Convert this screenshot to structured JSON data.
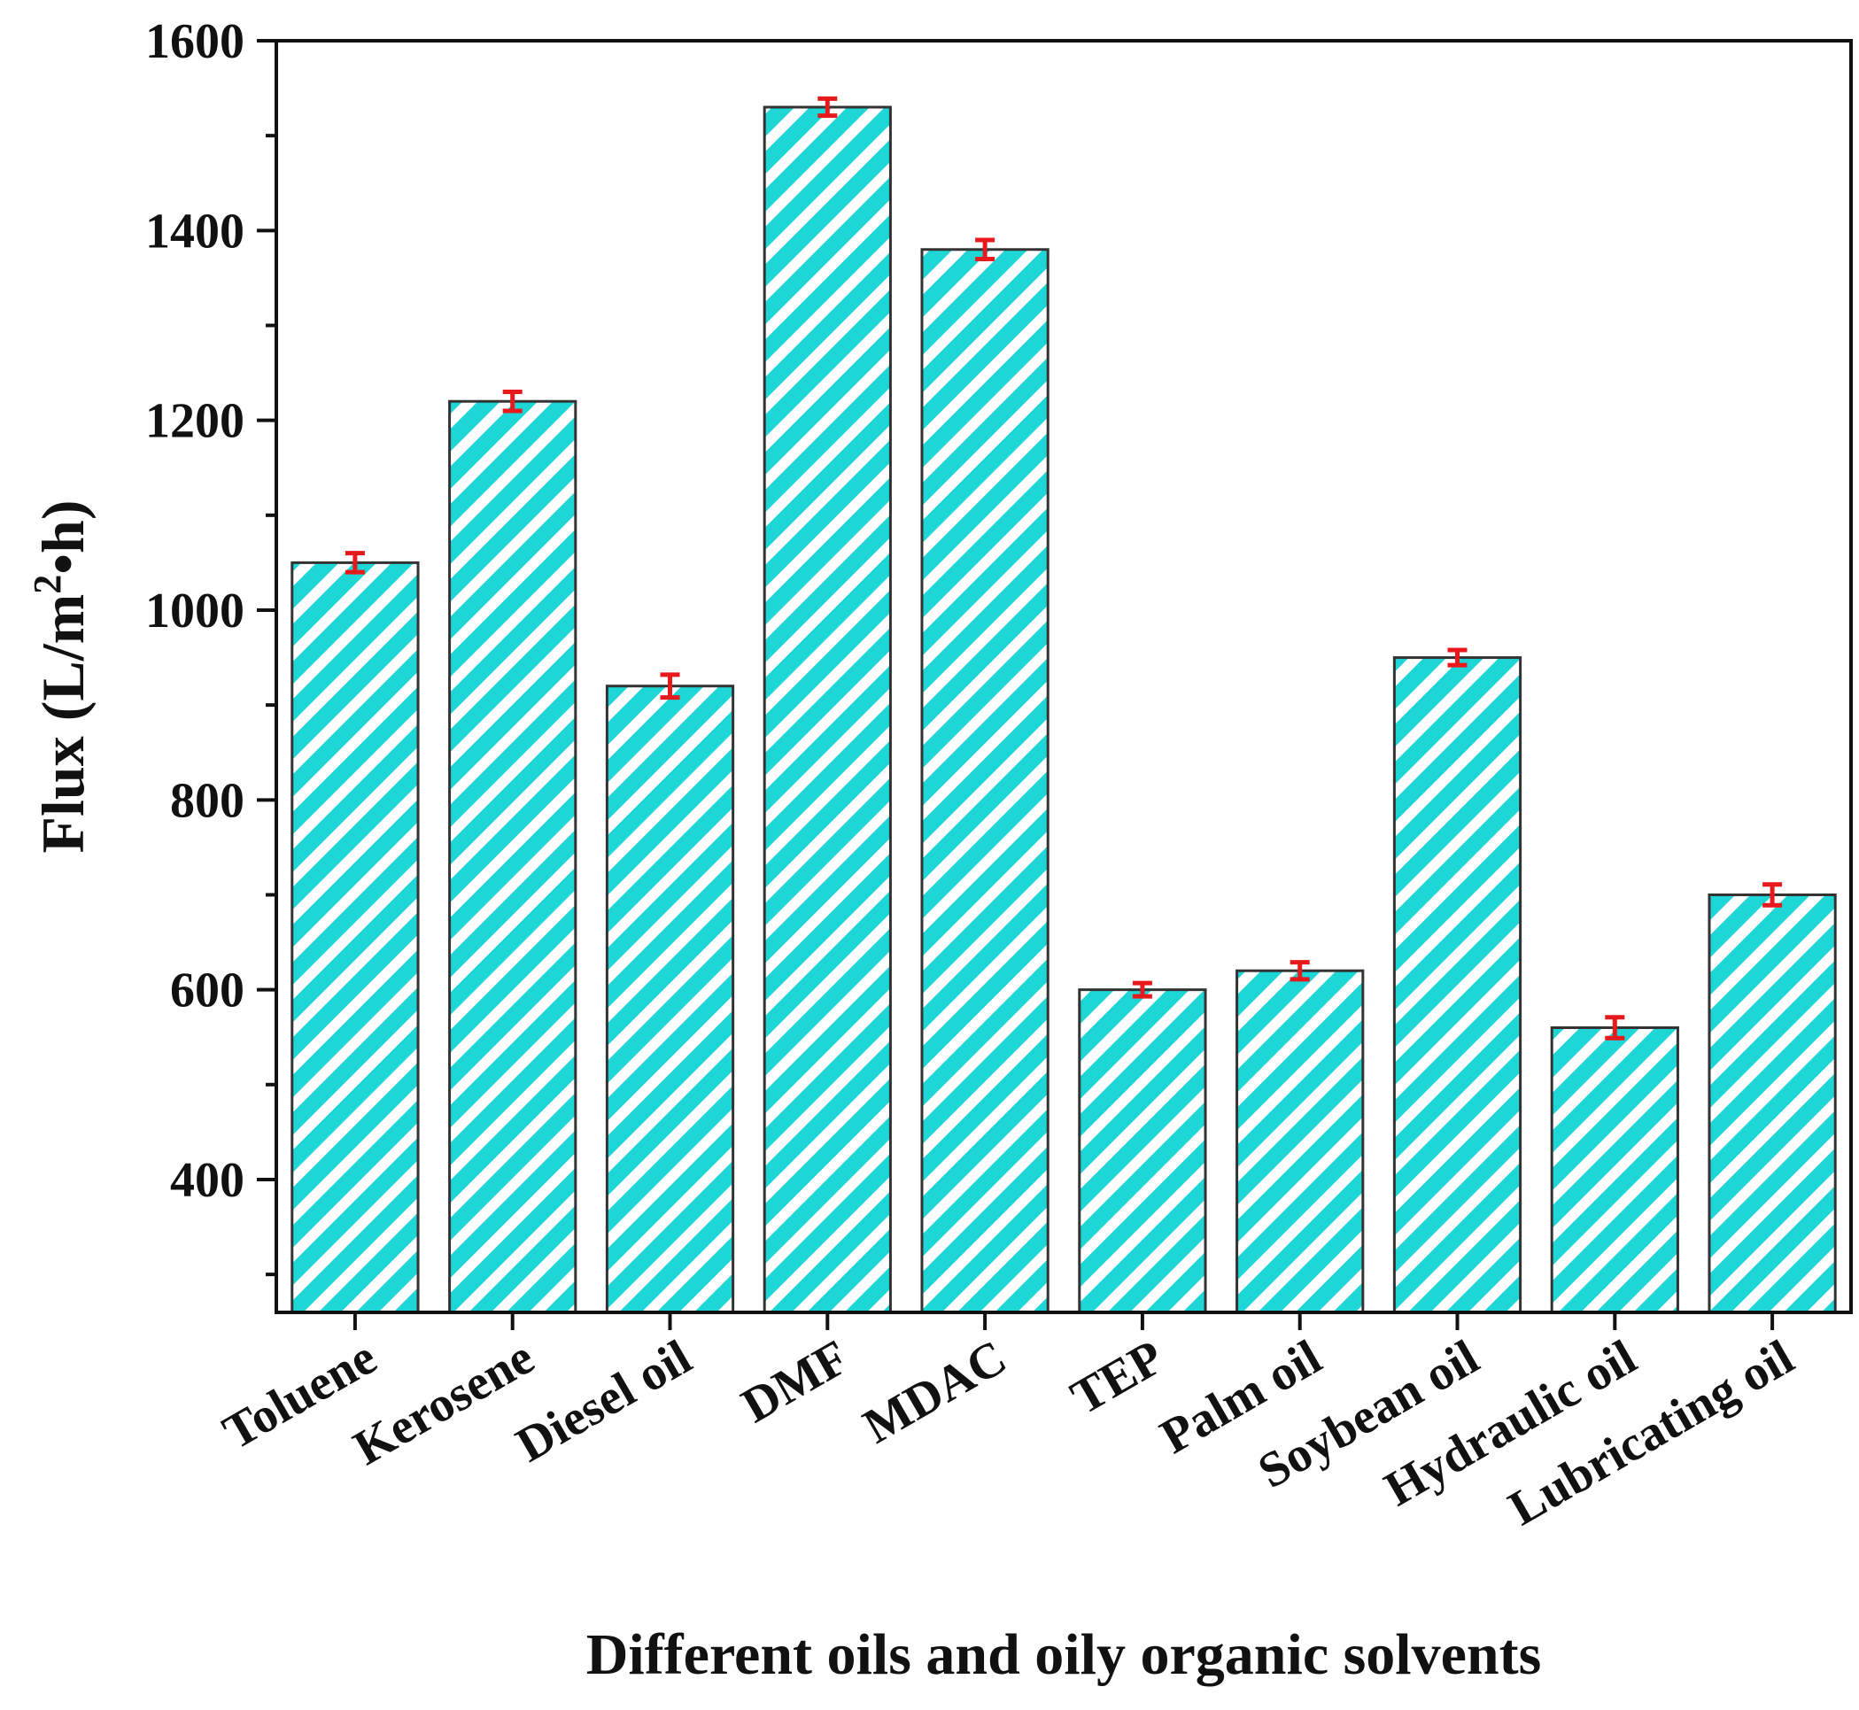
{
  "chart_data": {
    "type": "bar",
    "xlabel": "Different oils and oily organic solvents",
    "ylabel_main": "Flux (L/m",
    "ylabel_sup": "2",
    "ylabel_end": "•h)",
    "ylim": [
      260,
      1600
    ],
    "yticks": [
      400,
      600,
      800,
      1000,
      1200,
      1400,
      1600
    ],
    "categories": [
      "Toluene",
      "Kerosene",
      "Diesel oil",
      "DMF",
      "MDAC",
      "TEP",
      "Palm oil",
      "Soybean oil",
      "Hydraulic oil",
      "Lubricating oil"
    ],
    "values": [
      1050,
      1220,
      920,
      1530,
      1380,
      600,
      620,
      950,
      560,
      700
    ],
    "errors": [
      10,
      10,
      12,
      9,
      10,
      7,
      9,
      8,
      11,
      11
    ],
    "colors": {
      "bar_fill": "#1fd6d6",
      "hatch": "#ffffff",
      "error_bar": "#e8191c",
      "axis": "#111111"
    }
  }
}
